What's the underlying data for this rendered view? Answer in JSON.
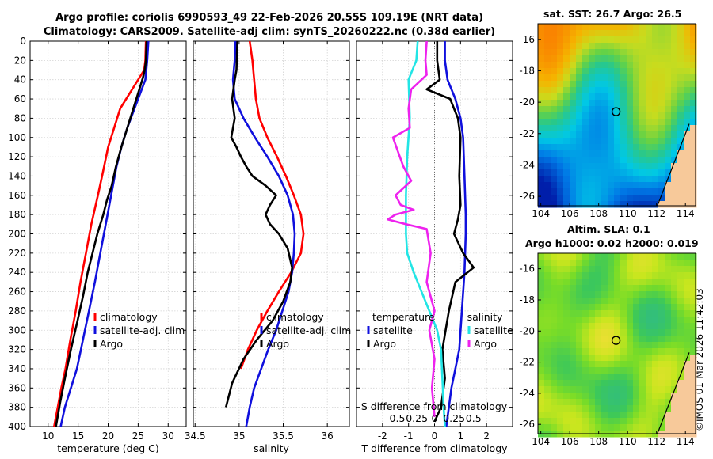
{
  "figure": {
    "title_line1": "Argo profile: coriolis 6990593_49 22-Feb-2026 20.55S 109.19E (NRT data)",
    "title_line2": "Climatology: CARS2009. Satellite-adj clim: synTS_20260222.nc (0.38d earlier)",
    "credit": "©IMOS 01-Mar-2026 11:42:03",
    "colors": {
      "climatology": "#ff0000",
      "satellite": "#1010dd",
      "argo": "#000000",
      "sat_salinity": "#22e5e5",
      "argo_salinity": "#ee22ee"
    }
  },
  "chart_data": [
    {
      "id": "temperature",
      "type": "line",
      "xlabel": "temperature (deg C)",
      "xlim": [
        7,
        33
      ],
      "xticks": [
        10,
        15,
        20,
        25,
        30
      ],
      "ylim": [
        400,
        0
      ],
      "yticks": [
        0,
        20,
        40,
        60,
        80,
        100,
        120,
        140,
        160,
        180,
        200,
        220,
        240,
        260,
        280,
        300,
        320,
        340,
        360,
        380,
        400
      ],
      "grid": true,
      "legend": {
        "entries": [
          "climatology",
          "satellite-adj. clim",
          "Argo"
        ],
        "position": "middle-right"
      },
      "series": [
        {
          "name": "climatology",
          "color": "#ff0000",
          "x": [
            26.3,
            26.2,
            26.0,
            24.0,
            22.0,
            21.0,
            20.0,
            19.0,
            18.3,
            17.2,
            16.3,
            15.4,
            14.6,
            13.7,
            12.9,
            12.2,
            11.6,
            11.0
          ],
          "y": [
            0,
            20,
            30,
            50,
            70,
            90,
            110,
            140,
            160,
            190,
            220,
            250,
            280,
            310,
            340,
            360,
            380,
            400
          ]
        },
        {
          "name": "satellite-adj. clim",
          "color": "#1010dd",
          "x": [
            26.7,
            26.5,
            26.2,
            24.4,
            23.2,
            22.2,
            21.4,
            20.5,
            19.6,
            18.7,
            17.8,
            16.8,
            15.8,
            14.8,
            13.8,
            12.8,
            12.1
          ],
          "y": [
            0,
            20,
            40,
            70,
            90,
            110,
            130,
            160,
            190,
            220,
            250,
            280,
            310,
            340,
            360,
            380,
            400
          ]
        },
        {
          "name": "Argo",
          "color": "#000000",
          "x": [
            26.4,
            26.3,
            26.1,
            25.8,
            25.2,
            24.2,
            23.2,
            22.2,
            21.3,
            20.6,
            19.8,
            19.2,
            18.2,
            17.4,
            16.6,
            15.8,
            14.9,
            13.8,
            12.8,
            12.0,
            11.3
          ],
          "y": [
            0,
            20,
            30,
            38,
            50,
            70,
            90,
            110,
            130,
            150,
            165,
            180,
            200,
            220,
            240,
            265,
            290,
            320,
            350,
            375,
            400
          ]
        }
      ]
    },
    {
      "id": "salinity",
      "type": "line",
      "xlabel": "salinity",
      "xlim": [
        34.48,
        36.25
      ],
      "xticks": [
        34.5,
        35,
        35.5,
        36
      ],
      "xticklabels": [
        "34.5",
        "35",
        "35.5",
        "36"
      ],
      "ylim": [
        400,
        0
      ],
      "grid": true,
      "legend": {
        "entries": [
          "climatology",
          "satellite-adj. clim",
          "Argo"
        ],
        "position": "middle-right"
      },
      "series": [
        {
          "name": "climatology",
          "color": "#ff0000",
          "x": [
            35.12,
            35.15,
            35.17,
            35.19,
            35.23,
            35.32,
            35.43,
            35.53,
            35.62,
            35.7,
            35.73,
            35.7,
            35.59,
            35.45,
            35.32,
            35.2,
            35.1,
            35.02
          ],
          "y": [
            0,
            20,
            40,
            60,
            80,
            100,
            120,
            140,
            160,
            180,
            200,
            220,
            240,
            260,
            280,
            300,
            320,
            340
          ]
        },
        {
          "name": "satellite-adj. clim",
          "color": "#1010dd",
          "x": [
            34.96,
            34.95,
            34.93,
            34.95,
            35.05,
            35.18,
            35.32,
            35.45,
            35.55,
            35.61,
            35.63,
            35.62,
            35.6,
            35.56,
            35.49,
            35.42,
            35.33,
            35.25,
            35.17,
            35.12,
            35.08
          ],
          "y": [
            0,
            20,
            40,
            60,
            80,
            100,
            120,
            140,
            160,
            180,
            200,
            220,
            240,
            260,
            280,
            300,
            320,
            340,
            360,
            380,
            400
          ]
        },
        {
          "name": "Argo",
          "color": "#000000",
          "x": [
            34.98,
            34.97,
            34.95,
            34.92,
            34.95,
            34.91,
            34.97,
            35.02,
            35.08,
            35.15,
            35.3,
            35.42,
            35.35,
            35.3,
            35.35,
            35.45,
            35.55,
            35.6,
            35.58,
            35.5,
            35.38,
            35.2,
            35.05,
            34.92,
            34.85
          ],
          "y": [
            0,
            30,
            40,
            60,
            80,
            100,
            110,
            120,
            130,
            140,
            150,
            160,
            170,
            180,
            190,
            200,
            215,
            235,
            250,
            270,
            290,
            310,
            330,
            355,
            380
          ]
        }
      ]
    },
    {
      "id": "differences",
      "type": "line",
      "xlabel": "T difference from climatology",
      "xlim": [
        -3,
        3
      ],
      "xticks": [
        -2,
        -1,
        0,
        1,
        2
      ],
      "top_xlabel": "S difference from climatology",
      "top_xticklabels": [
        "-0.5",
        "-0.25",
        "0",
        "0.25",
        "0.5"
      ],
      "ylim": [
        400,
        0
      ],
      "grid": true,
      "legend": {
        "titles": [
          "temperature",
          "salinity"
        ],
        "entries": [
          "satellite",
          "Argo",
          "satellite",
          "Argo"
        ],
        "position": "lower-middle"
      },
      "series": [
        {
          "name": "temperature satellite",
          "color": "#1010dd",
          "x": [
            0.4,
            0.4,
            0.5,
            0.8,
            1.0,
            1.1,
            1.15,
            1.2,
            1.2,
            1.15,
            1.05,
            0.95,
            0.8,
            0.65,
            0.55,
            0.45
          ],
          "y": [
            0,
            20,
            40,
            60,
            80,
            100,
            140,
            180,
            200,
            240,
            280,
            320,
            340,
            360,
            380,
            400
          ]
        },
        {
          "name": "temperature Argo",
          "color": "#000000",
          "x": [
            0.1,
            0.1,
            0.2,
            -0.3,
            0.6,
            0.9,
            1.0,
            0.95,
            1.0,
            0.9,
            0.75,
            1.1,
            1.5,
            0.8,
            0.55,
            0.3,
            0.4,
            0.25,
            0.0
          ],
          "y": [
            0,
            20,
            40,
            50,
            60,
            80,
            100,
            140,
            170,
            185,
            200,
            220,
            235,
            250,
            280,
            320,
            350,
            380,
            395
          ]
        },
        {
          "name": "salinity satellite",
          "color": "#22e5e5",
          "x": [
            -0.65,
            -0.7,
            -1.0,
            -0.95,
            -1.05,
            -1.1,
            -1.1,
            -1.05,
            -0.8,
            -0.5,
            -0.2,
            0.1,
            0.25,
            0.3,
            0.35,
            0.4
          ],
          "y": [
            0,
            20,
            40,
            80,
            120,
            160,
            200,
            220,
            240,
            260,
            280,
            300,
            320,
            350,
            380,
            400
          ]
        },
        {
          "name": "salinity Argo",
          "color": "#ee22ee",
          "x": [
            -0.3,
            -0.35,
            -0.3,
            -0.9,
            -1.0,
            -0.95,
            -1.6,
            -1.4,
            -1.2,
            -0.9,
            -1.5,
            -1.3,
            -0.8,
            -1.5,
            -1.8,
            -1.1,
            -0.3,
            -0.15,
            -0.3,
            0.0,
            -0.2,
            0.0,
            -0.1,
            0.0
          ],
          "y": [
            0,
            20,
            35,
            50,
            70,
            90,
            100,
            115,
            130,
            145,
            160,
            170,
            175,
            180,
            185,
            190,
            195,
            220,
            250,
            280,
            300,
            330,
            360,
            390
          ]
        }
      ]
    }
  ],
  "maps": [
    {
      "id": "sst_map",
      "title": "sat. SST: 26.7 Argo: 26.5",
      "xticks": [
        104,
        106,
        108,
        110,
        112,
        114
      ],
      "yticks": [
        -16,
        -18,
        -20,
        -22,
        -24,
        -26
      ],
      "lon_range": [
        103.8,
        114.7
      ],
      "lat_range": [
        -15.0,
        -26.6
      ],
      "marker": [
        109.2,
        -20.6
      ]
    },
    {
      "id": "sla_map",
      "title_line1": "Altim. SLA: 0.1",
      "title_line2": "Argo h1000: 0.02 h2000: 0.019",
      "xticks": [
        104,
        106,
        108,
        110,
        112,
        114
      ],
      "yticks": [
        -16,
        -18,
        -20,
        -22,
        -24,
        -26
      ],
      "lon_range": [
        103.8,
        114.7
      ],
      "lat_range": [
        -15.0,
        -26.6
      ],
      "marker": [
        109.2,
        -20.6
      ]
    }
  ]
}
